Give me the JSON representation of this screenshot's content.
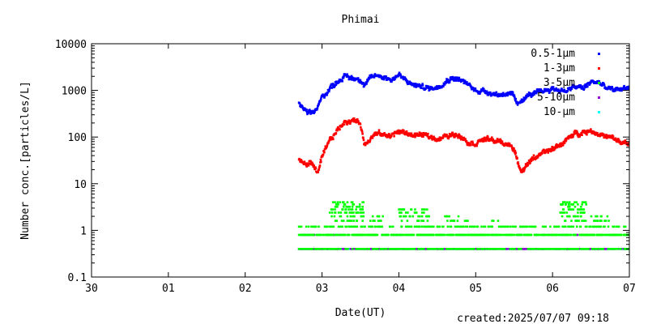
{
  "chart_data": {
    "type": "scatter",
    "title": "Phimai",
    "xlabel": "Date(UT)",
    "ylabel": "Number conc.[particles/L]",
    "footer": "created:2025/07/07 09:18",
    "x_tick_labels": [
      "30",
      "01",
      "02",
      "03",
      "04",
      "05",
      "06",
      "07"
    ],
    "x_range_days": [
      0,
      7
    ],
    "y_log_scale": true,
    "ylim": [
      0.1,
      10000
    ],
    "y_tick_labels": [
      "0.1",
      "1",
      "10",
      "100",
      "1000",
      "10000"
    ],
    "legend_position": "top-right",
    "series": [
      {
        "name": "0.5-1μm",
        "color": "#0000ff",
        "style": "dense",
        "x": [
          2.7,
          2.75,
          2.8,
          2.85,
          2.9,
          2.95,
          3.0,
          3.1,
          3.2,
          3.3,
          3.4,
          3.5,
          3.55,
          3.6,
          3.7,
          3.8,
          3.9,
          4.0,
          4.1,
          4.2,
          4.3,
          4.4,
          4.5,
          4.6,
          4.7,
          4.8,
          4.9,
          5.0,
          5.1,
          5.2,
          5.3,
          5.4,
          5.5,
          5.55,
          5.6,
          5.7,
          5.8,
          5.9,
          6.0,
          6.1,
          6.2,
          6.3,
          6.4,
          6.5,
          6.6,
          6.7,
          6.8,
          6.9,
          7.0
        ],
        "y": [
          500,
          420,
          330,
          300,
          350,
          450,
          700,
          1100,
          1600,
          2000,
          1800,
          1800,
          1300,
          1600,
          2100,
          2000,
          1700,
          2200,
          1500,
          1300,
          1200,
          1100,
          1200,
          1600,
          1900,
          1700,
          1300,
          1000,
          1000,
          900,
          800,
          900,
          700,
          450,
          650,
          800,
          850,
          1000,
          1100,
          1000,
          1000,
          1200,
          1100,
          1500,
          1500,
          1100,
          1000,
          1100,
          1200
        ]
      },
      {
        "name": "1-3μm",
        "color": "#ff0000",
        "style": "dense",
        "x": [
          2.7,
          2.75,
          2.8,
          2.85,
          2.9,
          2.95,
          3.0,
          3.1,
          3.2,
          3.3,
          3.4,
          3.5,
          3.55,
          3.6,
          3.7,
          3.8,
          3.9,
          4.0,
          4.1,
          4.2,
          4.3,
          4.4,
          4.5,
          4.6,
          4.7,
          4.8,
          4.9,
          5.0,
          5.1,
          5.2,
          5.3,
          5.4,
          5.5,
          5.55,
          5.6,
          5.7,
          5.8,
          5.9,
          6.0,
          6.1,
          6.2,
          6.3,
          6.4,
          6.5,
          6.6,
          6.7,
          6.8,
          6.9,
          7.0
        ],
        "y": [
          32,
          28,
          25,
          30,
          22,
          18,
          35,
          80,
          140,
          220,
          230,
          200,
          70,
          90,
          120,
          110,
          110,
          130,
          120,
          110,
          110,
          100,
          95,
          100,
          110,
          115,
          80,
          75,
          90,
          85,
          80,
          70,
          60,
          25,
          20,
          30,
          40,
          45,
          55,
          70,
          90,
          120,
          130,
          140,
          120,
          100,
          90,
          75,
          70
        ]
      },
      {
        "name": "3-5μm",
        "color": "#00ff00",
        "style": "quantized",
        "x_start": 2.7,
        "x_end": 7.0,
        "levels": [
          0.4,
          0.8,
          1.2,
          1.6,
          2.0,
          2.4,
          2.8,
          3.2,
          3.6,
          4.0
        ],
        "bursts": [
          [
            3.1,
            3.55,
            4.0
          ],
          [
            3.6,
            3.8,
            2.0
          ],
          [
            4.0,
            4.4,
            2.8
          ],
          [
            4.6,
            4.9,
            2.0
          ],
          [
            5.2,
            5.4,
            1.6
          ],
          [
            6.1,
            6.45,
            4.0
          ],
          [
            6.5,
            6.75,
            2.0
          ]
        ]
      },
      {
        "name": "5-10μm",
        "color": "#9400d3",
        "style": "quantized",
        "x_start": 2.7,
        "x_end": 7.0,
        "levels": [
          0.4,
          0.8
        ],
        "bursts": []
      },
      {
        "name": "10-μm",
        "color": "#00ffff",
        "style": "quantized",
        "x_start": 2.7,
        "x_end": 7.0,
        "levels": [
          0.4
        ],
        "bursts": []
      }
    ]
  }
}
